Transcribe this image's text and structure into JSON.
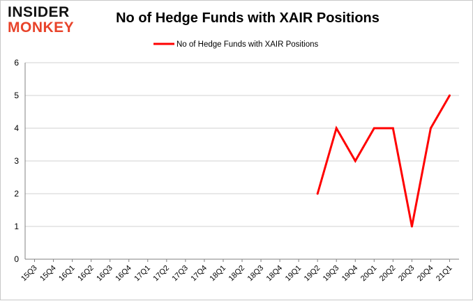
{
  "logo": {
    "line1": "INSIDER",
    "line2": "MONKEY"
  },
  "colors": {
    "series": "#ff0000",
    "grid": "#d0d0d0",
    "axis": "#808080",
    "logo_accent": "#e8432a"
  },
  "chart_data": {
    "type": "line",
    "title": "No of Hedge Funds with XAIR Positions",
    "xlabel": "",
    "ylabel": "",
    "ylim": [
      0,
      6
    ],
    "yticks": [
      0,
      1,
      2,
      3,
      4,
      5,
      6
    ],
    "grid": true,
    "legend_position": "top-center",
    "categories": [
      "15Q3",
      "15Q4",
      "16Q1",
      "16Q2",
      "16Q3",
      "16Q4",
      "17Q1",
      "17Q2",
      "17Q3",
      "17Q4",
      "18Q1",
      "18Q2",
      "18Q3",
      "18Q4",
      "19Q1",
      "19Q2",
      "19Q3",
      "19Q4",
      "20Q1",
      "20Q2",
      "20Q3",
      "20Q4",
      "21Q1"
    ],
    "series": [
      {
        "name": "No of Hedge Funds with XAIR Positions",
        "values": [
          null,
          null,
          null,
          null,
          null,
          null,
          null,
          null,
          null,
          null,
          null,
          null,
          null,
          null,
          null,
          2,
          4,
          3,
          4,
          4,
          1,
          4,
          5
        ]
      }
    ]
  }
}
